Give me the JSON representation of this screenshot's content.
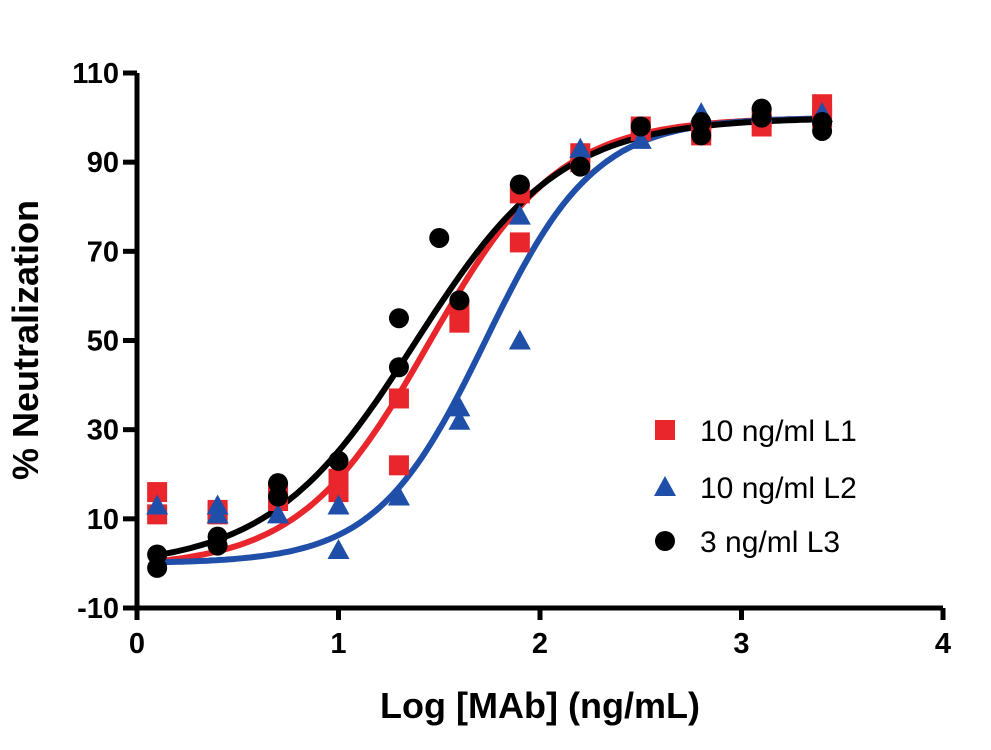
{
  "chart_data": {
    "type": "scatter",
    "xlabel": "Log [MAb] (ng/mL)",
    "ylabel": "% Neutralization",
    "xlim": [
      0,
      4
    ],
    "ylim": [
      -10,
      110
    ],
    "x_ticks": [
      "0",
      "1",
      "2",
      "3",
      "4"
    ],
    "y_ticks": [
      "-10",
      "10",
      "30",
      "50",
      "70",
      "90",
      "110"
    ],
    "legend_position": "right",
    "series": [
      {
        "name": "10 ng/ml L1",
        "color": "#e8262b",
        "marker": "square",
        "points": [
          [
            0.1,
            16
          ],
          [
            0.1,
            11
          ],
          [
            0.4,
            12
          ],
          [
            0.4,
            11
          ],
          [
            0.7,
            16
          ],
          [
            0.7,
            14
          ],
          [
            1.0,
            19
          ],
          [
            1.0,
            16
          ],
          [
            1.3,
            37
          ],
          [
            1.3,
            22
          ],
          [
            1.6,
            57
          ],
          [
            1.6,
            54
          ],
          [
            1.9,
            83
          ],
          [
            1.9,
            72
          ],
          [
            2.2,
            92
          ],
          [
            2.2,
            90
          ],
          [
            2.5,
            98
          ],
          [
            2.5,
            97
          ],
          [
            2.8,
            97
          ],
          [
            2.8,
            96
          ],
          [
            3.1,
            100
          ],
          [
            3.1,
            98
          ],
          [
            3.4,
            103
          ],
          [
            3.4,
            100
          ]
        ],
        "fit": {
          "bottom": -1,
          "top": 100,
          "logEC50": 1.45,
          "hill": 1.35
        }
      },
      {
        "name": "10 ng/ml L2",
        "color": "#1f4fa8",
        "marker": "triangle",
        "points": [
          [
            0.1,
            13
          ],
          [
            0.4,
            13
          ],
          [
            0.4,
            11
          ],
          [
            0.7,
            11
          ],
          [
            1.0,
            13
          ],
          [
            1.0,
            3
          ],
          [
            1.3,
            15
          ],
          [
            1.6,
            35
          ],
          [
            1.6,
            32
          ],
          [
            1.9,
            78
          ],
          [
            1.9,
            50
          ],
          [
            2.2,
            93
          ],
          [
            2.5,
            95
          ],
          [
            2.8,
            101
          ],
          [
            3.1,
            101
          ],
          [
            3.4,
            101
          ]
        ],
        "fit": {
          "bottom": 0,
          "top": 100,
          "logEC50": 1.73,
          "hill": 1.6
        }
      },
      {
        "name": "3 ng/ml L3",
        "color": "#000000",
        "marker": "circle",
        "points": [
          [
            0.1,
            2
          ],
          [
            0.1,
            -1
          ],
          [
            0.4,
            6
          ],
          [
            0.4,
            4
          ],
          [
            0.7,
            18
          ],
          [
            0.7,
            15
          ],
          [
            1.0,
            23
          ],
          [
            1.3,
            55
          ],
          [
            1.3,
            44
          ],
          [
            1.5,
            73
          ],
          [
            1.6,
            59
          ],
          [
            1.9,
            85
          ],
          [
            2.2,
            89
          ],
          [
            2.5,
            98
          ],
          [
            2.8,
            99
          ],
          [
            2.8,
            96
          ],
          [
            3.1,
            102
          ],
          [
            3.1,
            100
          ],
          [
            3.4,
            99
          ],
          [
            3.4,
            97
          ]
        ],
        "fit": {
          "bottom": -1,
          "top": 100,
          "logEC50": 1.38,
          "hill": 1.2
        }
      }
    ]
  }
}
